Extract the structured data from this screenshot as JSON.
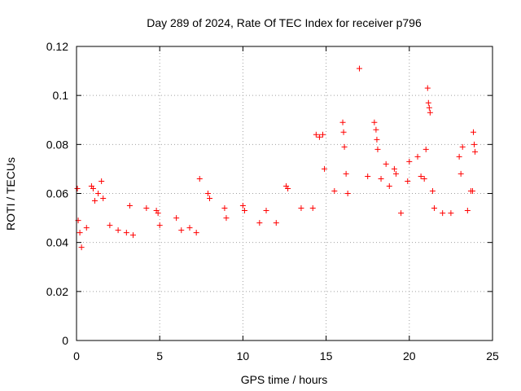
{
  "chart_data": {
    "type": "scatter",
    "title": "Day 289 of 2024, Rate Of TEC Index for receiver p796",
    "xlabel": "GPS time / hours",
    "ylabel": "ROTI / TECUs",
    "xlim": [
      0,
      25
    ],
    "ylim": [
      0,
      0.12
    ],
    "x_ticks": [
      0,
      5,
      10,
      15,
      20,
      25
    ],
    "x_tick_labels": [
      "0",
      "5",
      "10",
      "15",
      "20",
      "25"
    ],
    "y_ticks": [
      0,
      0.02,
      0.04,
      0.06,
      0.08,
      0.1,
      0.12
    ],
    "y_tick_labels": [
      "0",
      "0.02",
      "0.04",
      "0.06",
      "0.08",
      "0.1",
      "0.12"
    ],
    "grid": true,
    "marker": "+",
    "color": "#ff0000",
    "series": [
      {
        "points": [
          [
            0.05,
            0.062
          ],
          [
            0.1,
            0.049
          ],
          [
            0.2,
            0.044
          ],
          [
            0.3,
            0.038
          ],
          [
            0.6,
            0.046
          ],
          [
            0.9,
            0.063
          ],
          [
            1.0,
            0.062
          ],
          [
            1.1,
            0.057
          ],
          [
            1.3,
            0.06
          ],
          [
            1.5,
            0.065
          ],
          [
            1.6,
            0.058
          ],
          [
            2.0,
            0.047
          ],
          [
            2.5,
            0.045
          ],
          [
            3.0,
            0.044
          ],
          [
            3.2,
            0.055
          ],
          [
            3.4,
            0.043
          ],
          [
            4.2,
            0.054
          ],
          [
            4.8,
            0.053
          ],
          [
            4.9,
            0.052
          ],
          [
            5.0,
            0.047
          ],
          [
            6.0,
            0.05
          ],
          [
            6.3,
            0.045
          ],
          [
            6.8,
            0.046
          ],
          [
            7.2,
            0.044
          ],
          [
            7.4,
            0.066
          ],
          [
            7.9,
            0.06
          ],
          [
            8.0,
            0.058
          ],
          [
            8.9,
            0.054
          ],
          [
            9.0,
            0.05
          ],
          [
            10.0,
            0.055
          ],
          [
            10.1,
            0.053
          ],
          [
            11.0,
            0.048
          ],
          [
            11.4,
            0.053
          ],
          [
            12.0,
            0.048
          ],
          [
            12.6,
            0.063
          ],
          [
            12.7,
            0.062
          ],
          [
            13.5,
            0.054
          ],
          [
            14.2,
            0.054
          ],
          [
            14.4,
            0.084
          ],
          [
            14.6,
            0.083
          ],
          [
            14.8,
            0.084
          ],
          [
            14.9,
            0.07
          ],
          [
            15.5,
            0.061
          ],
          [
            16.0,
            0.089
          ],
          [
            16.05,
            0.085
          ],
          [
            16.1,
            0.079
          ],
          [
            16.2,
            0.068
          ],
          [
            16.3,
            0.06
          ],
          [
            17.0,
            0.111
          ],
          [
            17.5,
            0.067
          ],
          [
            17.9,
            0.089
          ],
          [
            18.0,
            0.086
          ],
          [
            18.05,
            0.082
          ],
          [
            18.1,
            0.078
          ],
          [
            18.3,
            0.066
          ],
          [
            18.6,
            0.072
          ],
          [
            18.8,
            0.063
          ],
          [
            19.1,
            0.07
          ],
          [
            19.2,
            0.068
          ],
          [
            19.5,
            0.052
          ],
          [
            19.9,
            0.065
          ],
          [
            20.0,
            0.073
          ],
          [
            20.5,
            0.075
          ],
          [
            20.7,
            0.067
          ],
          [
            20.9,
            0.066
          ],
          [
            21.0,
            0.078
          ],
          [
            21.1,
            0.103
          ],
          [
            21.15,
            0.097
          ],
          [
            21.2,
            0.095
          ],
          [
            21.25,
            0.093
          ],
          [
            21.4,
            0.061
          ],
          [
            21.5,
            0.054
          ],
          [
            22.0,
            0.052
          ],
          [
            22.5,
            0.052
          ],
          [
            23.0,
            0.075
          ],
          [
            23.1,
            0.068
          ],
          [
            23.2,
            0.079
          ],
          [
            23.5,
            0.053
          ],
          [
            23.7,
            0.061
          ],
          [
            23.8,
            0.061
          ],
          [
            23.85,
            0.085
          ],
          [
            23.9,
            0.08
          ],
          [
            23.95,
            0.077
          ]
        ]
      }
    ]
  }
}
